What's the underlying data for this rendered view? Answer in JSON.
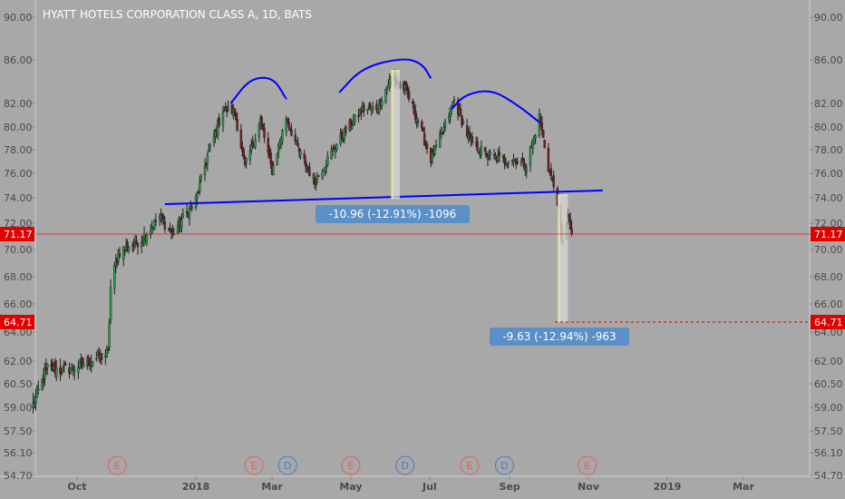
{
  "chart_data": {
    "type": "candlestick",
    "title": "HYATT HOTELS CORPORATION CLASS A, 1D, BATS",
    "y_ticks": [
      "90.00",
      "86.00",
      "82.00",
      "80.00",
      "78.00",
      "76.00",
      "74.00",
      "72.00",
      "70.00",
      "68.00",
      "66.00",
      "64.00",
      "62.00",
      "60.50",
      "59.00",
      "57.50",
      "56.10",
      "54.70"
    ],
    "y_values": [
      90.0,
      86.0,
      82.0,
      80.0,
      78.0,
      76.0,
      74.0,
      72.0,
      70.0,
      68.0,
      66.0,
      64.0,
      62.0,
      60.5,
      59.0,
      57.5,
      56.1,
      54.7
    ],
    "x_ticks": [
      {
        "label": "Oct",
        "date": "2017-10-01"
      },
      {
        "label": "2018",
        "date": "2018-01-01"
      },
      {
        "label": "Mar",
        "date": "2018-03-01"
      },
      {
        "label": "May",
        "date": "2018-05-01"
      },
      {
        "label": "Jul",
        "date": "2018-07-01"
      },
      {
        "label": "Sep",
        "date": "2018-09-01"
      },
      {
        "label": "Nov",
        "date": "2018-11-01"
      },
      {
        "label": "2019",
        "date": "2019-01-01"
      },
      {
        "label": "Mar",
        "date": "2019-03-01"
      }
    ],
    "price_tags": [
      {
        "label": "71.17",
        "value": 71.17
      },
      {
        "label": "64.71",
        "value": 64.71
      }
    ],
    "price_keypoints": [
      [
        "2017-08-28",
        59.2
      ],
      [
        "2017-09-08",
        61.5
      ],
      [
        "2017-09-20",
        61.4
      ],
      [
        "2017-10-05",
        61.8
      ],
      [
        "2017-10-25",
        62.5
      ],
      [
        "2017-10-27",
        67.2
      ],
      [
        "2017-11-02",
        69.8
      ],
      [
        "2017-11-20",
        70.8
      ],
      [
        "2017-12-04",
        72.5
      ],
      [
        "2017-12-14",
        71.2
      ],
      [
        "2018-01-01",
        73.8
      ],
      [
        "2018-01-10",
        77.5
      ],
      [
        "2018-01-22",
        81.5
      ],
      [
        "2018-01-31",
        81.3
      ],
      [
        "2018-02-08",
        76.5
      ],
      [
        "2018-02-20",
        80.5
      ],
      [
        "2018-03-01",
        76.2
      ],
      [
        "2018-03-12",
        80.8
      ],
      [
        "2018-03-22",
        77.8
      ],
      [
        "2018-04-03",
        75.3
      ],
      [
        "2018-04-16",
        77.8
      ],
      [
        "2018-04-26",
        79.5
      ],
      [
        "2018-05-10",
        81.5
      ],
      [
        "2018-05-21",
        81.6
      ],
      [
        "2018-06-01",
        84.3
      ],
      [
        "2018-06-12",
        83.3
      ],
      [
        "2018-06-22",
        80.5
      ],
      [
        "2018-07-02",
        77.2
      ],
      [
        "2018-07-11",
        79.5
      ],
      [
        "2018-07-20",
        82.3
      ],
      [
        "2018-08-01",
        78.8
      ],
      [
        "2018-08-13",
        77.6
      ],
      [
        "2018-08-27",
        77.1
      ],
      [
        "2018-09-05",
        77.2
      ],
      [
        "2018-09-14",
        76.7
      ],
      [
        "2018-09-24",
        80.8
      ],
      [
        "2018-10-01",
        76.5
      ],
      [
        "2018-10-08",
        73.8
      ],
      [
        "2018-10-11",
        70.6
      ],
      [
        "2018-10-16",
        72.5
      ],
      [
        "2018-10-19",
        71.17
      ]
    ],
    "lines": [
      {
        "name": "neckline",
        "points": [
          [
            "2017-12-08",
            73.5
          ],
          [
            "2018-11-12",
            74.6
          ]
        ]
      }
    ],
    "arcs": [
      {
        "name": "left-shoulder",
        "points": [
          [
            "2018-01-28",
            82.0
          ],
          [
            "2018-02-12",
            84.3
          ],
          [
            "2018-03-02",
            84.4
          ],
          [
            "2018-03-12",
            82.4
          ]
        ]
      },
      {
        "name": "head",
        "points": [
          [
            "2018-04-22",
            83.0
          ],
          [
            "2018-05-10",
            85.3
          ],
          [
            "2018-06-10",
            86.2
          ],
          [
            "2018-06-25",
            85.7
          ],
          [
            "2018-07-02",
            84.3
          ]
        ]
      },
      {
        "name": "right-shoulder",
        "points": [
          [
            "2018-07-18",
            81.5
          ],
          [
            "2018-07-28",
            82.8
          ],
          [
            "2018-08-18",
            83.3
          ],
          [
            "2018-09-08",
            81.8
          ],
          [
            "2018-09-24",
            80.4
          ]
        ]
      }
    ],
    "measures": [
      {
        "label": "-10.96 (-12.91%) -1096",
        "from": [
          "2018-06-01",
          85.0
        ],
        "to": [
          "2018-06-08",
          73.9
        ]
      },
      {
        "label": "-9.63 (-12.94%) -963",
        "from": [
          "2018-10-08",
          74.2
        ],
        "to": [
          "2018-10-16",
          64.71
        ]
      }
    ],
    "events": [
      {
        "letter": "E",
        "date": "2017-11-01",
        "type": "earnings"
      },
      {
        "letter": "E",
        "date": "2018-02-15",
        "type": "earnings"
      },
      {
        "letter": "D",
        "date": "2018-03-13",
        "type": "dividend"
      },
      {
        "letter": "E",
        "date": "2018-05-01",
        "type": "earnings"
      },
      {
        "letter": "D",
        "date": "2018-06-12",
        "type": "dividend"
      },
      {
        "letter": "E",
        "date": "2018-08-01",
        "type": "earnings"
      },
      {
        "letter": "D",
        "date": "2018-08-28",
        "type": "dividend"
      },
      {
        "letter": "E",
        "date": "2018-10-31",
        "type": "earnings"
      }
    ],
    "colors": {
      "background": "#a8a8a8",
      "up": "#2a9d4a",
      "down": "#7b1c1c",
      "wick": "#222222",
      "pattern_line": "#0000ff",
      "price_tag": "#e00000",
      "measure_fill": "#5b8fc7",
      "earnings": "#e06060",
      "dividend": "#4a78c8"
    }
  }
}
